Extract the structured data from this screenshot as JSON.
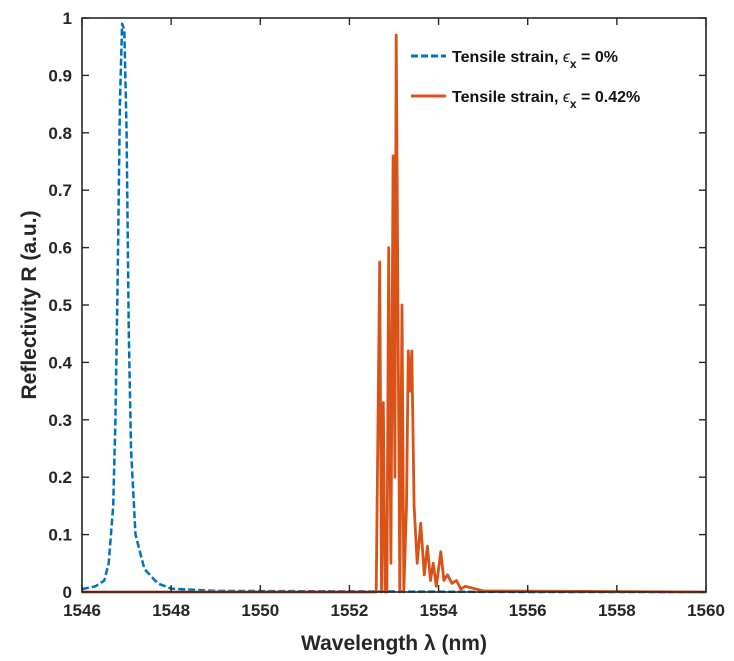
{
  "chart_data": {
    "type": "line",
    "xlabel": "Wavelength  λ (nm)",
    "ylabel": "Reflectivity  R (a.u.)",
    "xlim": [
      1546,
      1560
    ],
    "ylim": [
      0,
      1
    ],
    "x_ticks": [
      "1546",
      "1548",
      "1550",
      "1552",
      "1554",
      "1556",
      "1558",
      "1560"
    ],
    "y_ticks": [
      "0",
      "0.1",
      "0.2",
      "0.3",
      "0.4",
      "0.5",
      "0.6",
      "0.7",
      "0.8",
      "0.9",
      "1"
    ],
    "grid": false,
    "legend_position": "top-right",
    "series": [
      {
        "name": "Tensile strain, ϵx = 0%",
        "name_main": "Tensile strain, ",
        "name_symbol": "ϵ",
        "name_sub": "x",
        "name_tail": " = 0%",
        "color": "#0072BD",
        "line_style": "dashed",
        "x": [
          1546.0,
          1546.3,
          1546.5,
          1546.6,
          1546.7,
          1546.75,
          1546.8,
          1546.85,
          1546.9,
          1546.95,
          1547.0,
          1547.05,
          1547.1,
          1547.2,
          1547.4,
          1547.7,
          1548.0,
          1549.0,
          1556.0,
          1560.0
        ],
        "y": [
          0.005,
          0.01,
          0.02,
          0.05,
          0.15,
          0.3,
          0.55,
          0.85,
          0.99,
          0.98,
          0.8,
          0.45,
          0.25,
          0.1,
          0.04,
          0.015,
          0.006,
          0.002,
          0.0,
          0.0
        ]
      },
      {
        "name": "Tensile strain, ϵx = 0.42%",
        "name_main": "Tensile strain, ",
        "name_symbol": "ϵ",
        "name_sub": "x",
        "name_tail": " = 0.42%",
        "color": "#D95319",
        "line_style": "solid",
        "x": [
          1546.0,
          1552.0,
          1552.55,
          1552.6,
          1552.68,
          1552.72,
          1552.76,
          1552.8,
          1552.84,
          1552.88,
          1552.93,
          1552.98,
          1553.02,
          1553.05,
          1553.1,
          1553.13,
          1553.18,
          1553.22,
          1553.28,
          1553.32,
          1553.36,
          1553.4,
          1553.45,
          1553.52,
          1553.6,
          1553.68,
          1553.75,
          1553.82,
          1553.88,
          1553.95,
          1554.05,
          1554.12,
          1554.2,
          1554.3,
          1554.4,
          1554.5,
          1554.6,
          1555.0,
          1560.0
        ],
        "y": [
          0.0,
          0.0,
          0.0,
          0.0,
          0.575,
          0.0,
          0.33,
          0.0,
          0.0,
          0.6,
          0.05,
          0.76,
          0.2,
          0.97,
          0.35,
          0.0,
          0.5,
          0.0,
          0.15,
          0.42,
          0.35,
          0.42,
          0.15,
          0.05,
          0.12,
          0.03,
          0.08,
          0.02,
          0.05,
          0.01,
          0.07,
          0.02,
          0.03,
          0.015,
          0.02,
          0.005,
          0.01,
          0.002,
          0.0
        ]
      }
    ]
  }
}
